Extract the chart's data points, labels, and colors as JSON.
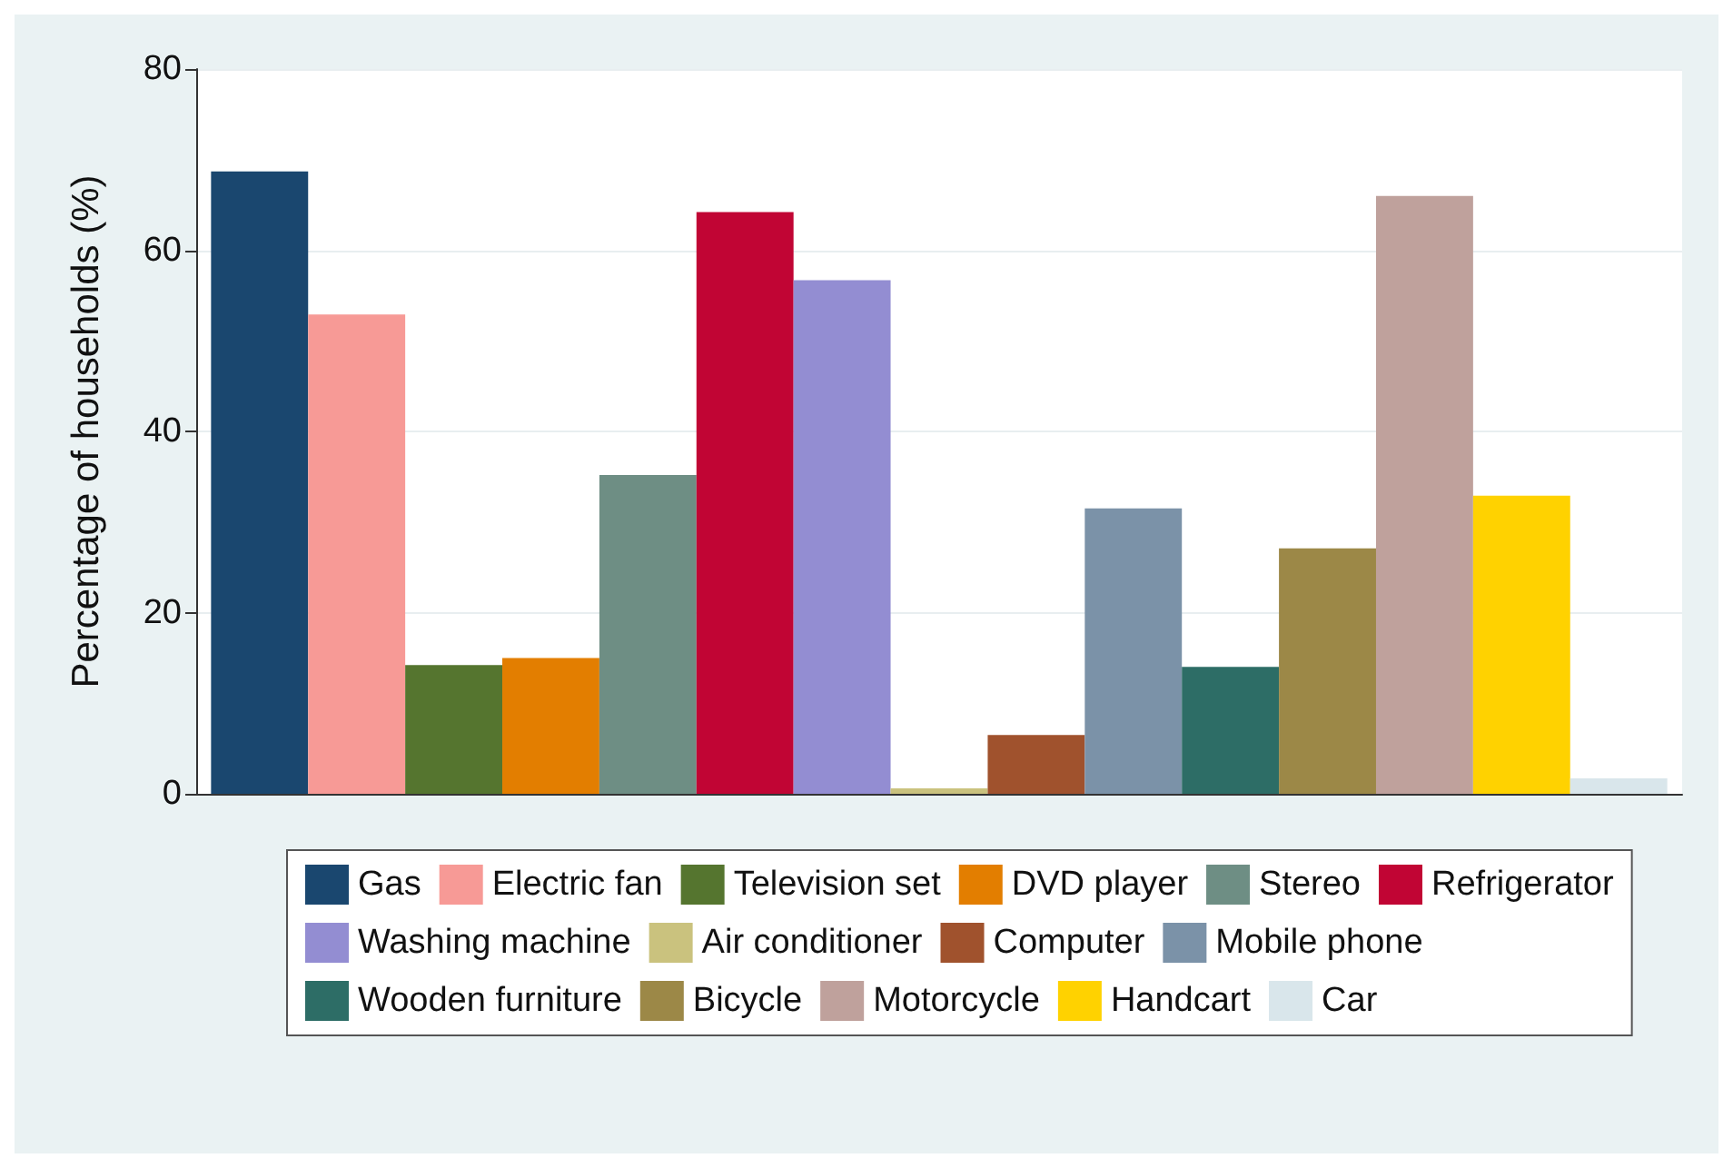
{
  "chart_data": {
    "type": "bar",
    "ylabel": "Percentage of households (%)",
    "categories": [
      null
    ],
    "ylim": [
      0,
      80
    ],
    "yticks": [
      0,
      20,
      40,
      60,
      80
    ],
    "grid": "y",
    "legend": "bottom",
    "series": [
      {
        "name": "Gas",
        "color": "#1a476f",
        "values": [
          68.7
        ]
      },
      {
        "name": "Electric fan",
        "color": "#f79a96",
        "values": [
          52.9
        ]
      },
      {
        "name": "Television set",
        "color": "#55752f",
        "values": [
          14.2
        ]
      },
      {
        "name": "DVD player",
        "color": "#e37e00",
        "values": [
          15.0
        ]
      },
      {
        "name": "Stereo",
        "color": "#6e8e84",
        "values": [
          35.2
        ]
      },
      {
        "name": "Refrigerator",
        "color": "#c10534",
        "values": [
          64.2
        ]
      },
      {
        "name": "Washing machine",
        "color": "#938dd2",
        "values": [
          56.7
        ]
      },
      {
        "name": "Air conditioner",
        "color": "#cac27e",
        "values": [
          0.6
        ]
      },
      {
        "name": "Computer",
        "color": "#a0522d",
        "values": [
          6.5
        ]
      },
      {
        "name": "Mobile phone",
        "color": "#7b92a8",
        "values": [
          31.5
        ]
      },
      {
        "name": "Wooden furniture",
        "color": "#2d6d66",
        "values": [
          14.0
        ]
      },
      {
        "name": "Bicycle",
        "color": "#9c8847",
        "values": [
          27.1
        ]
      },
      {
        "name": "Motorcycle",
        "color": "#bfa19c",
        "values": [
          66.0
        ]
      },
      {
        "name": "Handcart",
        "color": "#ffd200",
        "values": [
          32.9
        ]
      },
      {
        "name": "Car",
        "color": "#d9e6eb",
        "values": [
          1.7
        ]
      }
    ]
  }
}
